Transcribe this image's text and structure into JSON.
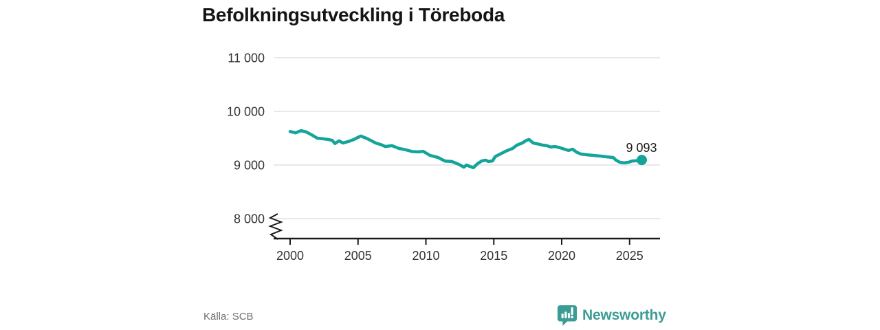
{
  "title": "Befolkningsutveckling i Töreboda",
  "source": "Källa: SCB",
  "branding": {
    "name": "Newsworthy",
    "icon": "newsworthy-bubble-chart-icon",
    "color": "#3a9c95"
  },
  "colors": {
    "line": "#13a49a",
    "marker": "#13a49a",
    "grid": "#e0e0e0",
    "axis": "#1a1a1a",
    "tick_text": "#333333",
    "title_text": "#151515",
    "muted_text": "#6f6f6f"
  },
  "chart_data": {
    "type": "line",
    "title": "Befolkningsutveckling i Töreboda",
    "xlabel": "",
    "ylabel": "",
    "grid": "horizontal",
    "legend": "none",
    "axis_break": true,
    "yticks": [
      11000,
      10000,
      9000,
      8000
    ],
    "ytick_labels": [
      "11 000",
      "10 000",
      "9 000",
      "8 000"
    ],
    "xticks": [
      2000,
      2005,
      2010,
      2015,
      2020,
      2025
    ],
    "xtick_labels": [
      "2000",
      "2005",
      "2010",
      "2015",
      "2020",
      "2025"
    ],
    "end_label": "9 093",
    "end_value": 9093,
    "x": [
      2000.0,
      2000.4,
      2000.8,
      2001.2,
      2001.6,
      2002.0,
      2002.4,
      2002.8,
      2003.1,
      2003.3,
      2003.6,
      2003.9,
      2004.3,
      2004.7,
      2005.0,
      2005.2,
      2005.6,
      2006.0,
      2006.3,
      2006.7,
      2007.0,
      2007.5,
      2008.0,
      2008.5,
      2009.0,
      2009.5,
      2009.8,
      2010.3,
      2010.9,
      2011.4,
      2011.9,
      2012.4,
      2012.8,
      2013.0,
      2013.2,
      2013.5,
      2013.8,
      2014.1,
      2014.4,
      2014.6,
      2014.9,
      2015.1,
      2015.6,
      2016.0,
      2016.4,
      2016.7,
      2017.1,
      2017.4,
      2017.6,
      2017.9,
      2018.2,
      2018.6,
      2018.9,
      2019.2,
      2019.5,
      2019.9,
      2020.2,
      2020.5,
      2020.8,
      2021.1,
      2021.4,
      2021.9,
      2022.4,
      2022.9,
      2023.4,
      2023.8,
      2024.0,
      2024.3,
      2024.6,
      2024.9,
      2025.2,
      2025.5,
      2025.9
    ],
    "values": [
      9625,
      9600,
      9640,
      9615,
      9560,
      9500,
      9490,
      9475,
      9460,
      9400,
      9450,
      9410,
      9440,
      9475,
      9515,
      9540,
      9500,
      9450,
      9410,
      9380,
      9345,
      9360,
      9310,
      9285,
      9250,
      9245,
      9255,
      9180,
      9140,
      9075,
      9065,
      9015,
      8960,
      9000,
      8975,
      8950,
      9025,
      9075,
      9090,
      9065,
      9075,
      9155,
      9220,
      9270,
      9310,
      9370,
      9410,
      9460,
      9475,
      9410,
      9395,
      9370,
      9360,
      9335,
      9345,
      9320,
      9295,
      9270,
      9295,
      9240,
      9205,
      9190,
      9178,
      9165,
      9150,
      9140,
      9090,
      9050,
      9040,
      9050,
      9075,
      9080,
      9093
    ]
  }
}
